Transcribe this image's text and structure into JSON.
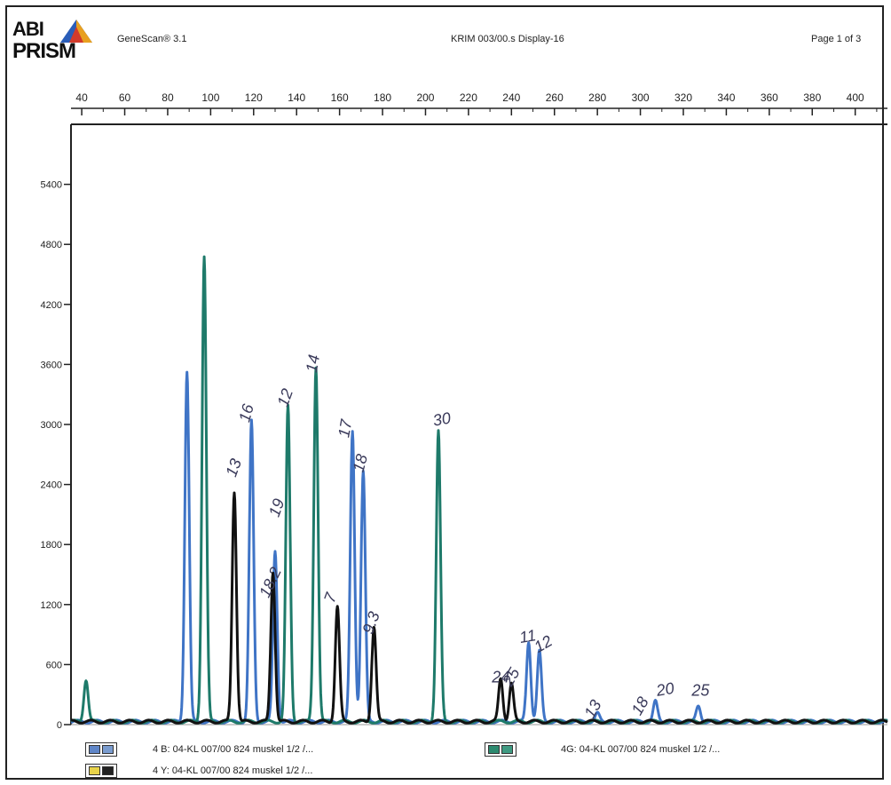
{
  "header": {
    "logo_top": "ABI",
    "logo_bottom": "PRISM",
    "app": "GeneScan® 3.1",
    "file": "KRIM 003/00.s Display-16",
    "page": "Page 1 of 3"
  },
  "colors": {
    "blue": "#3f74c6",
    "light_blue": "#86aede",
    "green": "#1e7a6a",
    "black": "#111111",
    "yellow": "#e8d34a"
  },
  "chart_data": {
    "type": "line",
    "x_ticks": [
      40,
      60,
      80,
      100,
      120,
      140,
      160,
      180,
      200,
      220,
      240,
      260,
      280,
      300,
      320,
      340,
      360,
      380,
      400
    ],
    "y_ticks": [
      0,
      600,
      1200,
      1800,
      2400,
      3000,
      3600,
      4200,
      4800,
      5400
    ],
    "xlim": [
      35,
      415
    ],
    "ylim": [
      0,
      6000
    ],
    "series": [
      {
        "name": "4 B: 04-KL 007/00 824 muskel 1/2 /...",
        "color": "#3f74c6",
        "peaks": [
          [
            89,
            3500
          ],
          [
            119,
            3000
          ],
          [
            130,
            1700
          ],
          [
            166,
            2900
          ],
          [
            171,
            2500
          ],
          [
            248,
            800
          ],
          [
            253,
            700
          ],
          [
            280,
            80
          ],
          [
            307,
            200
          ],
          [
            327,
            150
          ]
        ]
      },
      {
        "name": "4G: 04-KL 007/00 824 muskel 1/2 /...",
        "color": "#1e7a6a",
        "peaks": [
          [
            42,
            420
          ],
          [
            97,
            4650
          ],
          [
            136,
            3150
          ],
          [
            149,
            3550
          ],
          [
            206,
            2900
          ]
        ]
      },
      {
        "name": "4 Y: 04-KL 007/00 824 muskel 1/2 /...",
        "color": "#111111",
        "peaks": [
          [
            111,
            2300
          ],
          [
            129,
            1500
          ],
          [
            159,
            1150
          ],
          [
            176,
            950
          ],
          [
            235,
            430
          ],
          [
            240,
            380
          ]
        ]
      }
    ],
    "annotations": [
      {
        "text": "13",
        "x": 113,
        "y": 2550,
        "rot": -70
      },
      {
        "text": "16",
        "x": 119,
        "y": 3100,
        "rot": -75
      },
      {
        "text": "12",
        "x": 137,
        "y": 3250,
        "rot": -70
      },
      {
        "text": "14",
        "x": 150,
        "y": 3600,
        "rot": -80
      },
      {
        "text": "19",
        "x": 133,
        "y": 2150,
        "rot": -70
      },
      {
        "text": "18.2",
        "x": 130,
        "y": 1400,
        "rot": -65
      },
      {
        "text": "17",
        "x": 165,
        "y": 2950,
        "rot": -80
      },
      {
        "text": "18",
        "x": 172,
        "y": 2600,
        "rot": -75
      },
      {
        "text": "30",
        "x": 208,
        "y": 3000,
        "rot": -10
      },
      {
        "text": "7",
        "x": 158,
        "y": 1250,
        "rot": -70
      },
      {
        "text": "9.3",
        "x": 177,
        "y": 1000,
        "rot": -70
      },
      {
        "text": "24",
        "x": 235,
        "y": 420,
        "rot": 0
      },
      {
        "text": "25",
        "x": 242,
        "y": 450,
        "rot": -60
      },
      {
        "text": "11",
        "x": 248,
        "y": 830,
        "rot": -10
      },
      {
        "text": "12",
        "x": 256,
        "y": 760,
        "rot": -30
      },
      {
        "text": "13",
        "x": 280,
        "y": 130,
        "rot": -60
      },
      {
        "text": "18",
        "x": 302,
        "y": 160,
        "rot": -60
      },
      {
        "text": "20",
        "x": 312,
        "y": 300,
        "rot": -10
      },
      {
        "text": "25",
        "x": 328,
        "y": 290,
        "rot": 0
      }
    ]
  },
  "legend": {
    "row1_left": "4 B: 04-KL  007/00  824  muskel    1/2  /...",
    "row1_right": "4G: 04-KL  007/00  824  muskel    1/2  /...",
    "row2_left": "4 Y: 04-KL  007/00  824  muskel    1/2  /..."
  }
}
